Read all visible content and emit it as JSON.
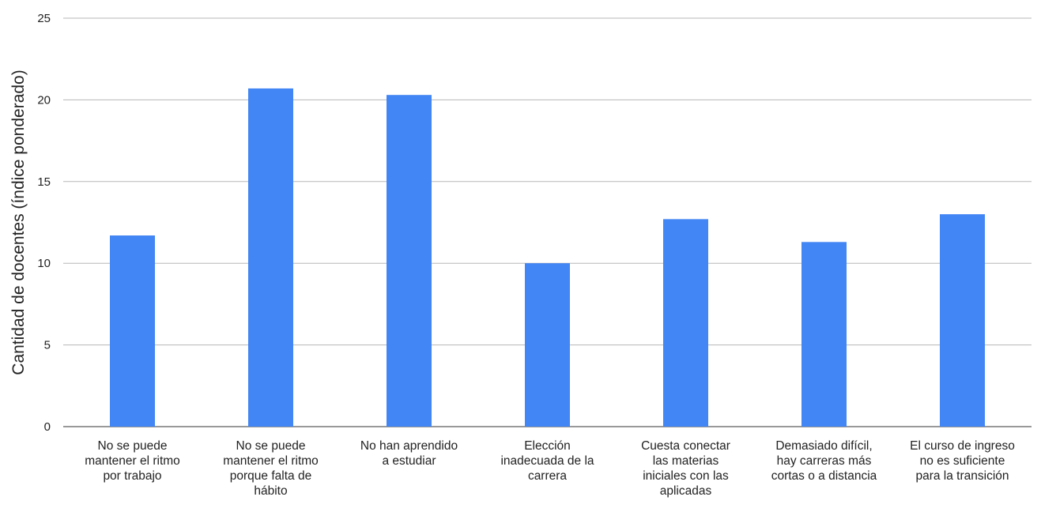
{
  "chart_data": {
    "type": "bar",
    "title": "",
    "xlabel": "",
    "ylabel": "Cantidad de docentes (índice ponderado)",
    "ylim": [
      0,
      25
    ],
    "yticks": [
      0,
      5,
      10,
      15,
      20,
      25
    ],
    "grid": true,
    "legend": "none",
    "bar_color": "#4285f4",
    "categories": [
      [
        "No se puede",
        "mantener el ritmo",
        "por trabajo"
      ],
      [
        "No se puede",
        "mantener el ritmo",
        "porque falta de",
        "hábito"
      ],
      [
        "No han aprendido",
        "a estudiar"
      ],
      [
        "Elección",
        "inadecuada de la",
        "carrera"
      ],
      [
        "Cuesta conectar",
        "las materias",
        "iniciales con las",
        "aplicadas"
      ],
      [
        "Demasiado difícil,",
        "hay carreras más",
        "cortas o a distancia"
      ],
      [
        "El curso de ingreso",
        "no es suficiente",
        "para la transición"
      ]
    ],
    "values": [
      11.7,
      20.7,
      20.3,
      10.0,
      12.7,
      11.3,
      13.0
    ]
  }
}
